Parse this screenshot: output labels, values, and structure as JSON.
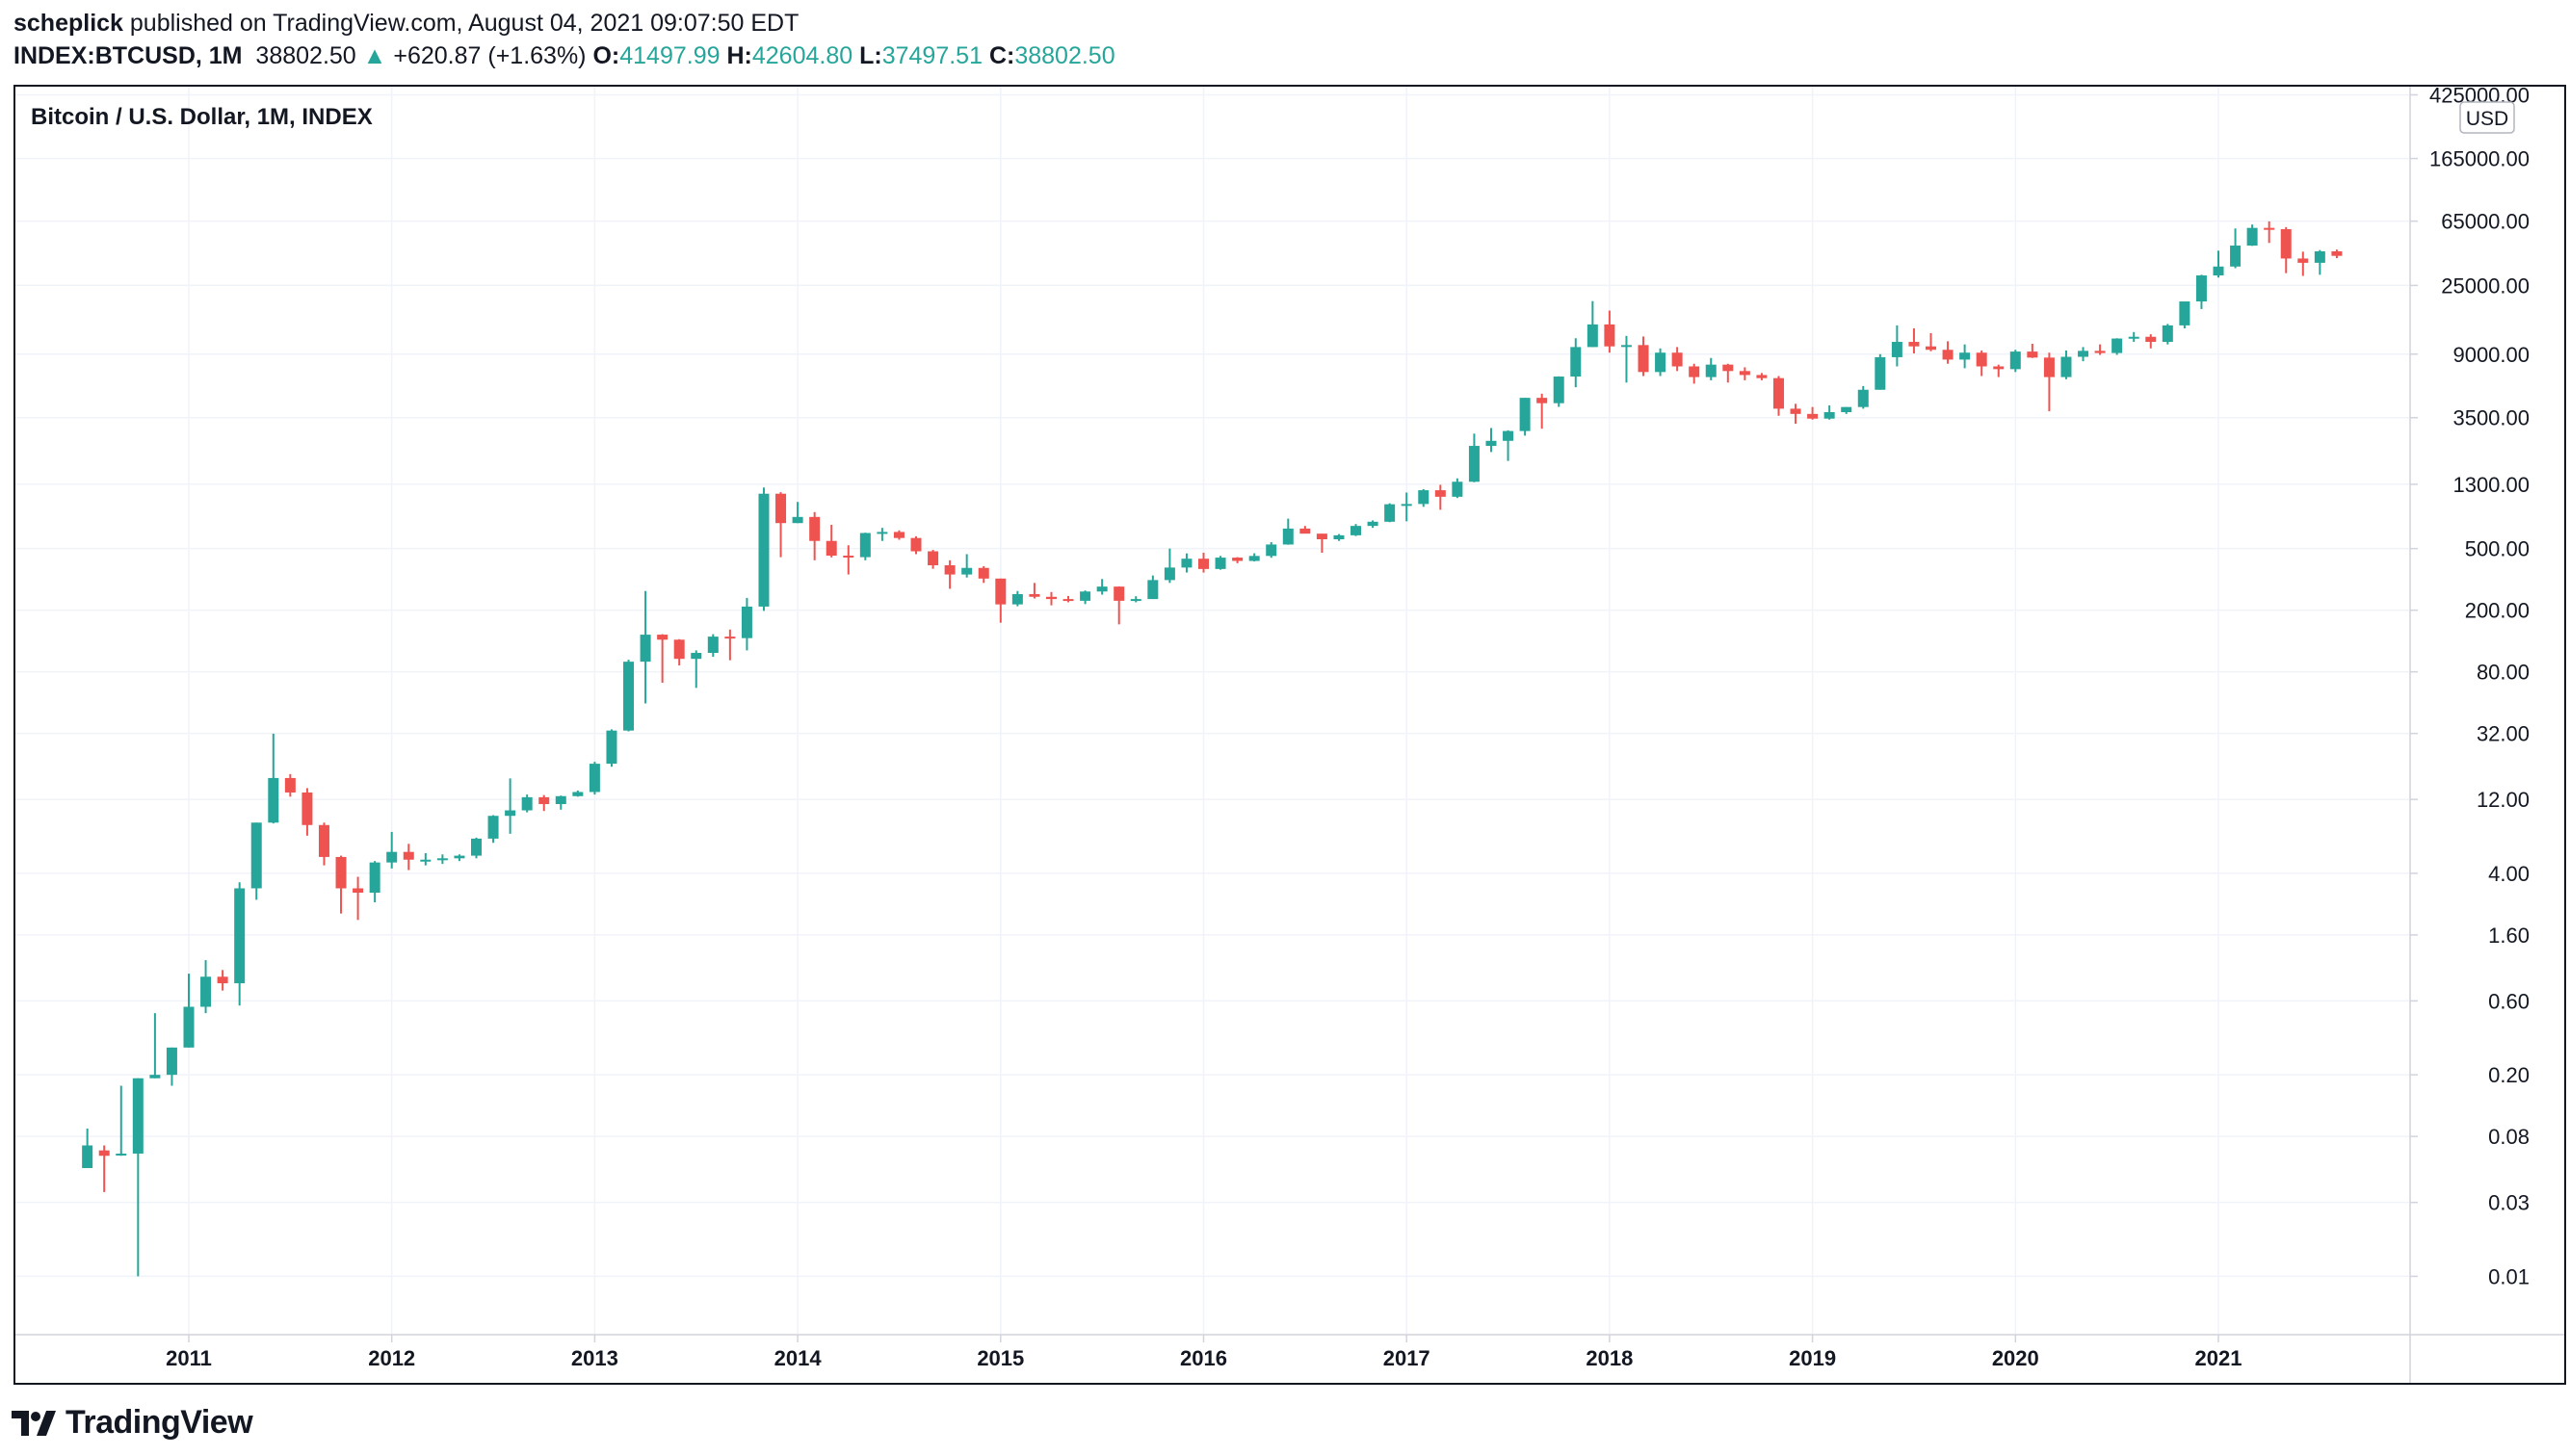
{
  "header": {
    "author": "scheplick",
    "published_text": "published on TradingView.com, August 04, 2021 09:07:50 EDT"
  },
  "ohlc": {
    "symbol": "INDEX:BTCUSD, 1M",
    "last": "38802.50",
    "arrow": "▲",
    "change": "+620.87 (+1.63%)",
    "o_label": "O:",
    "o": "41497.99",
    "h_label": "H:",
    "h": "42604.80",
    "l_label": "L:",
    "l": "37497.51",
    "c_label": "C:",
    "c": "38802.50"
  },
  "colors": {
    "up": "#26a69a",
    "down": "#ef5350",
    "grid": "#f0f3fa",
    "axis_text": "#131722"
  },
  "chart_data": {
    "type": "candlestick",
    "title": "Bitcoin / U.S. Dollar, 1M, INDEX",
    "currency_badge": "USD",
    "y_scale": "log",
    "ylim": [
      0.0042,
      480000
    ],
    "y_ticks": [
      "425000.00",
      "165000.00",
      "65000.00",
      "25000.00",
      "9000.00",
      "3500.00",
      "1300.00",
      "500.00",
      "200.00",
      "80.00",
      "32.00",
      "12.00",
      "4.00",
      "1.60",
      "0.60",
      "0.20",
      "0.08",
      "0.03",
      "0.01"
    ],
    "x_ticks": [
      "2011",
      "2012",
      "2013",
      "2014",
      "2015",
      "2016",
      "2017",
      "2018",
      "2019",
      "2020",
      "2021"
    ],
    "grid": true,
    "candles": [
      {
        "date": "2010-07",
        "o": 0.05,
        "h": 0.09,
        "l": 0.05,
        "c": 0.07
      },
      {
        "date": "2010-08",
        "o": 0.065,
        "h": 0.07,
        "l": 0.035,
        "c": 0.06
      },
      {
        "date": "2010-09",
        "o": 0.062,
        "h": 0.17,
        "l": 0.06,
        "c": 0.062
      },
      {
        "date": "2010-10",
        "o": 0.062,
        "h": 0.19,
        "l": 0.01,
        "c": 0.19
      },
      {
        "date": "2010-11",
        "o": 0.19,
        "h": 0.5,
        "l": 0.19,
        "c": 0.2
      },
      {
        "date": "2010-12",
        "o": 0.2,
        "h": 0.3,
        "l": 0.17,
        "c": 0.3
      },
      {
        "date": "2011-01",
        "o": 0.3,
        "h": 0.9,
        "l": 0.3,
        "c": 0.55
      },
      {
        "date": "2011-02",
        "o": 0.55,
        "h": 1.1,
        "l": 0.5,
        "c": 0.86
      },
      {
        "date": "2011-03",
        "o": 0.86,
        "h": 0.95,
        "l": 0.7,
        "c": 0.78
      },
      {
        "date": "2011-04",
        "o": 0.78,
        "h": 3.5,
        "l": 0.56,
        "c": 3.2
      },
      {
        "date": "2011-05",
        "o": 3.2,
        "h": 8.5,
        "l": 2.7,
        "c": 8.5
      },
      {
        "date": "2011-06",
        "o": 8.5,
        "h": 31.9,
        "l": 8.4,
        "c": 16.5
      },
      {
        "date": "2011-07",
        "o": 16.5,
        "h": 17.5,
        "l": 12.5,
        "c": 13.3
      },
      {
        "date": "2011-08",
        "o": 13.3,
        "h": 14.2,
        "l": 7.0,
        "c": 8.2
      },
      {
        "date": "2011-09",
        "o": 8.2,
        "h": 8.5,
        "l": 4.5,
        "c": 5.1
      },
      {
        "date": "2011-10",
        "o": 5.1,
        "h": 5.2,
        "l": 2.2,
        "c": 3.2
      },
      {
        "date": "2011-11",
        "o": 3.2,
        "h": 3.8,
        "l": 2.0,
        "c": 3.0
      },
      {
        "date": "2011-12",
        "o": 3.0,
        "h": 4.8,
        "l": 2.6,
        "c": 4.7
      },
      {
        "date": "2012-01",
        "o": 4.7,
        "h": 7.4,
        "l": 4.3,
        "c": 5.5
      },
      {
        "date": "2012-02",
        "o": 5.5,
        "h": 6.2,
        "l": 4.2,
        "c": 4.9
      },
      {
        "date": "2012-03",
        "o": 4.9,
        "h": 5.4,
        "l": 4.5,
        "c": 4.9
      },
      {
        "date": "2012-04",
        "o": 4.9,
        "h": 5.3,
        "l": 4.6,
        "c": 5.0
      },
      {
        "date": "2012-05",
        "o": 5.0,
        "h": 5.3,
        "l": 4.8,
        "c": 5.2
      },
      {
        "date": "2012-06",
        "o": 5.2,
        "h": 6.8,
        "l": 5.0,
        "c": 6.7
      },
      {
        "date": "2012-07",
        "o": 6.7,
        "h": 9.5,
        "l": 6.3,
        "c": 9.4
      },
      {
        "date": "2012-08",
        "o": 9.4,
        "h": 16.4,
        "l": 7.2,
        "c": 10.2
      },
      {
        "date": "2012-09",
        "o": 10.2,
        "h": 12.9,
        "l": 9.9,
        "c": 12.4
      },
      {
        "date": "2012-10",
        "o": 12.4,
        "h": 12.8,
        "l": 10.1,
        "c": 11.2
      },
      {
        "date": "2012-11",
        "o": 11.2,
        "h": 12.7,
        "l": 10.3,
        "c": 12.6
      },
      {
        "date": "2012-12",
        "o": 12.6,
        "h": 13.7,
        "l": 12.5,
        "c": 13.4
      },
      {
        "date": "2013-01",
        "o": 13.4,
        "h": 21.0,
        "l": 12.9,
        "c": 20.4
      },
      {
        "date": "2013-02",
        "o": 20.4,
        "h": 34.0,
        "l": 19.5,
        "c": 33.4
      },
      {
        "date": "2013-03",
        "o": 33.4,
        "h": 95.7,
        "l": 33.0,
        "c": 93.0
      },
      {
        "date": "2013-04",
        "o": 93.0,
        "h": 266.0,
        "l": 50.0,
        "c": 139.0
      },
      {
        "date": "2013-05",
        "o": 139.0,
        "h": 140.0,
        "l": 68.0,
        "c": 129.0
      },
      {
        "date": "2013-06",
        "o": 129.0,
        "h": 130.0,
        "l": 88.0,
        "c": 97.0
      },
      {
        "date": "2013-07",
        "o": 97.0,
        "h": 110.0,
        "l": 63.0,
        "c": 106.0
      },
      {
        "date": "2013-08",
        "o": 106.0,
        "h": 140.0,
        "l": 100.0,
        "c": 135.0
      },
      {
        "date": "2013-09",
        "o": 135.0,
        "h": 150.0,
        "l": 95.0,
        "c": 132.0
      },
      {
        "date": "2013-10",
        "o": 132.0,
        "h": 240.0,
        "l": 110.0,
        "c": 211.0
      },
      {
        "date": "2013-11",
        "o": 211.0,
        "h": 1240.0,
        "l": 198.0,
        "c": 1130.0
      },
      {
        "date": "2013-12",
        "o": 1130.0,
        "h": 1156.0,
        "l": 440.0,
        "c": 730.0
      },
      {
        "date": "2014-01",
        "o": 730.0,
        "h": 1000.0,
        "l": 730.0,
        "c": 800.0
      },
      {
        "date": "2014-02",
        "o": 800.0,
        "h": 860.0,
        "l": 420.0,
        "c": 560.0
      },
      {
        "date": "2014-03",
        "o": 560.0,
        "h": 712.0,
        "l": 438.0,
        "c": 450.0
      },
      {
        "date": "2014-04",
        "o": 450.0,
        "h": 525.0,
        "l": 340.0,
        "c": 440.0
      },
      {
        "date": "2014-05",
        "o": 440.0,
        "h": 633.0,
        "l": 420.0,
        "c": 630.0
      },
      {
        "date": "2014-06",
        "o": 630.0,
        "h": 680.0,
        "l": 560.0,
        "c": 640.0
      },
      {
        "date": "2014-07",
        "o": 640.0,
        "h": 655.0,
        "l": 570.0,
        "c": 585.0
      },
      {
        "date": "2014-08",
        "o": 585.0,
        "h": 600.0,
        "l": 460.0,
        "c": 480.0
      },
      {
        "date": "2014-09",
        "o": 480.0,
        "h": 490.0,
        "l": 370.0,
        "c": 390.0
      },
      {
        "date": "2014-10",
        "o": 390.0,
        "h": 420.0,
        "l": 275.0,
        "c": 340.0
      },
      {
        "date": "2014-11",
        "o": 340.0,
        "h": 460.0,
        "l": 325.0,
        "c": 375.0
      },
      {
        "date": "2014-12",
        "o": 375.0,
        "h": 385.0,
        "l": 300.0,
        "c": 320.0
      },
      {
        "date": "2015-01",
        "o": 320.0,
        "h": 320.0,
        "l": 166.0,
        "c": 218.0
      },
      {
        "date": "2015-02",
        "o": 218.0,
        "h": 266.0,
        "l": 212.0,
        "c": 254.0
      },
      {
        "date": "2015-03",
        "o": 254.0,
        "h": 300.0,
        "l": 238.0,
        "c": 244.0
      },
      {
        "date": "2015-04",
        "o": 244.0,
        "h": 262.0,
        "l": 215.0,
        "c": 236.0
      },
      {
        "date": "2015-05",
        "o": 236.0,
        "h": 247.0,
        "l": 225.0,
        "c": 230.0
      },
      {
        "date": "2015-06",
        "o": 230.0,
        "h": 268.0,
        "l": 219.0,
        "c": 264.0
      },
      {
        "date": "2015-07",
        "o": 264.0,
        "h": 318.0,
        "l": 252.0,
        "c": 284.0
      },
      {
        "date": "2015-08",
        "o": 284.0,
        "h": 285.0,
        "l": 162.0,
        "c": 230.0
      },
      {
        "date": "2015-09",
        "o": 230.0,
        "h": 246.0,
        "l": 225.0,
        "c": 236.0
      },
      {
        "date": "2015-10",
        "o": 236.0,
        "h": 335.0,
        "l": 236.0,
        "c": 313.0
      },
      {
        "date": "2015-11",
        "o": 313.0,
        "h": 500.0,
        "l": 300.0,
        "c": 377.0
      },
      {
        "date": "2015-12",
        "o": 377.0,
        "h": 465.0,
        "l": 350.0,
        "c": 430.0
      },
      {
        "date": "2016-01",
        "o": 430.0,
        "h": 470.0,
        "l": 350.0,
        "c": 369.0
      },
      {
        "date": "2016-02",
        "o": 369.0,
        "h": 448.0,
        "l": 365.0,
        "c": 437.0
      },
      {
        "date": "2016-03",
        "o": 437.0,
        "h": 440.0,
        "l": 402.0,
        "c": 416.0
      },
      {
        "date": "2016-04",
        "o": 416.0,
        "h": 466.0,
        "l": 413.0,
        "c": 448.0
      },
      {
        "date": "2016-05",
        "o": 448.0,
        "h": 550.0,
        "l": 436.0,
        "c": 531.0
      },
      {
        "date": "2016-06",
        "o": 531.0,
        "h": 780.0,
        "l": 529.0,
        "c": 673.0
      },
      {
        "date": "2016-07",
        "o": 673.0,
        "h": 700.0,
        "l": 641.0,
        "c": 624.0
      },
      {
        "date": "2016-08",
        "o": 624.0,
        "h": 624.0,
        "l": 470.0,
        "c": 574.0
      },
      {
        "date": "2016-09",
        "o": 574.0,
        "h": 620.0,
        "l": 560.0,
        "c": 609.0
      },
      {
        "date": "2016-10",
        "o": 609.0,
        "h": 720.0,
        "l": 602.0,
        "c": 700.0
      },
      {
        "date": "2016-11",
        "o": 700.0,
        "h": 760.0,
        "l": 680.0,
        "c": 745.0
      },
      {
        "date": "2016-12",
        "o": 745.0,
        "h": 980.0,
        "l": 740.0,
        "c": 966.0
      },
      {
        "date": "2017-01",
        "o": 966.0,
        "h": 1150.0,
        "l": 750.0,
        "c": 970.0
      },
      {
        "date": "2017-02",
        "o": 970.0,
        "h": 1210.0,
        "l": 930.0,
        "c": 1190.0
      },
      {
        "date": "2017-03",
        "o": 1190.0,
        "h": 1290.0,
        "l": 890.0,
        "c": 1080.0
      },
      {
        "date": "2017-04",
        "o": 1080.0,
        "h": 1420.0,
        "l": 1060.0,
        "c": 1350.0
      },
      {
        "date": "2017-05",
        "o": 1350.0,
        "h": 2760.0,
        "l": 1340.0,
        "c": 2300.0
      },
      {
        "date": "2017-06",
        "o": 2300.0,
        "h": 3000.0,
        "l": 2100.0,
        "c": 2480.0
      },
      {
        "date": "2017-07",
        "o": 2480.0,
        "h": 2900.0,
        "l": 1840.0,
        "c": 2870.0
      },
      {
        "date": "2017-08",
        "o": 2870.0,
        "h": 4700.0,
        "l": 2680.0,
        "c": 4700.0
      },
      {
        "date": "2017-09",
        "o": 4700.0,
        "h": 5000.0,
        "l": 2970.0,
        "c": 4340.0
      },
      {
        "date": "2017-10",
        "o": 4340.0,
        "h": 6470.0,
        "l": 4110.0,
        "c": 6450.0
      },
      {
        "date": "2017-11",
        "o": 6450.0,
        "h": 11400.0,
        "l": 5500.0,
        "c": 10000.0
      },
      {
        "date": "2017-12",
        "o": 10000.0,
        "h": 19800.0,
        "l": 10000.0,
        "c": 14000.0
      },
      {
        "date": "2018-01",
        "o": 14000.0,
        "h": 17200.0,
        "l": 9200.0,
        "c": 10100.0
      },
      {
        "date": "2018-02",
        "o": 10100.0,
        "h": 11800.0,
        "l": 5900.0,
        "c": 10300.0
      },
      {
        "date": "2018-03",
        "o": 10300.0,
        "h": 11700.0,
        "l": 6500.0,
        "c": 6900.0
      },
      {
        "date": "2018-04",
        "o": 6900.0,
        "h": 9800.0,
        "l": 6500.0,
        "c": 9200.0
      },
      {
        "date": "2018-05",
        "o": 9200.0,
        "h": 10000.0,
        "l": 7000.0,
        "c": 7500.0
      },
      {
        "date": "2018-06",
        "o": 7500.0,
        "h": 7800.0,
        "l": 5800.0,
        "c": 6400.0
      },
      {
        "date": "2018-07",
        "o": 6400.0,
        "h": 8500.0,
        "l": 6100.0,
        "c": 7700.0
      },
      {
        "date": "2018-08",
        "o": 7700.0,
        "h": 7800.0,
        "l": 5900.0,
        "c": 7000.0
      },
      {
        "date": "2018-09",
        "o": 7000.0,
        "h": 7400.0,
        "l": 6100.0,
        "c": 6600.0
      },
      {
        "date": "2018-10",
        "o": 6600.0,
        "h": 6800.0,
        "l": 6100.0,
        "c": 6300.0
      },
      {
        "date": "2018-11",
        "o": 6300.0,
        "h": 6500.0,
        "l": 3600.0,
        "c": 4000.0
      },
      {
        "date": "2018-12",
        "o": 4000.0,
        "h": 4300.0,
        "l": 3200.0,
        "c": 3700.0
      },
      {
        "date": "2019-01",
        "o": 3700.0,
        "h": 4100.0,
        "l": 3400.0,
        "c": 3450.0
      },
      {
        "date": "2019-02",
        "o": 3450.0,
        "h": 4200.0,
        "l": 3400.0,
        "c": 3800.0
      },
      {
        "date": "2019-03",
        "o": 3800.0,
        "h": 4100.0,
        "l": 3700.0,
        "c": 4100.0
      },
      {
        "date": "2019-04",
        "o": 4100.0,
        "h": 5600.0,
        "l": 4000.0,
        "c": 5300.0
      },
      {
        "date": "2019-05",
        "o": 5300.0,
        "h": 9000.0,
        "l": 5300.0,
        "c": 8600.0
      },
      {
        "date": "2019-06",
        "o": 8600.0,
        "h": 13800.0,
        "l": 7500.0,
        "c": 10800.0
      },
      {
        "date": "2019-07",
        "o": 10800.0,
        "h": 13200.0,
        "l": 9100.0,
        "c": 10100.0
      },
      {
        "date": "2019-08",
        "o": 10100.0,
        "h": 12300.0,
        "l": 9400.0,
        "c": 9600.0
      },
      {
        "date": "2019-09",
        "o": 9600.0,
        "h": 10900.0,
        "l": 7800.0,
        "c": 8300.0
      },
      {
        "date": "2019-10",
        "o": 8300.0,
        "h": 10400.0,
        "l": 7300.0,
        "c": 9200.0
      },
      {
        "date": "2019-11",
        "o": 9200.0,
        "h": 9500.0,
        "l": 6500.0,
        "c": 7500.0
      },
      {
        "date": "2019-12",
        "o": 7500.0,
        "h": 7700.0,
        "l": 6400.0,
        "c": 7200.0
      },
      {
        "date": "2020-01",
        "o": 7200.0,
        "h": 9600.0,
        "l": 6900.0,
        "c": 9350.0
      },
      {
        "date": "2020-02",
        "o": 9350.0,
        "h": 10500.0,
        "l": 8500.0,
        "c": 8550.0
      },
      {
        "date": "2020-03",
        "o": 8550.0,
        "h": 9200.0,
        "l": 3850.0,
        "c": 6400.0
      },
      {
        "date": "2020-04",
        "o": 6400.0,
        "h": 9500.0,
        "l": 6200.0,
        "c": 8650.0
      },
      {
        "date": "2020-05",
        "o": 8650.0,
        "h": 10000.0,
        "l": 8100.0,
        "c": 9450.0
      },
      {
        "date": "2020-06",
        "o": 9450.0,
        "h": 10400.0,
        "l": 8900.0,
        "c": 9150.0
      },
      {
        "date": "2020-07",
        "o": 9150.0,
        "h": 11400.0,
        "l": 8900.0,
        "c": 11350.0
      },
      {
        "date": "2020-08",
        "o": 11350.0,
        "h": 12500.0,
        "l": 10800.0,
        "c": 11650.0
      },
      {
        "date": "2020-09",
        "o": 11650.0,
        "h": 12100.0,
        "l": 9800.0,
        "c": 10800.0
      },
      {
        "date": "2020-10",
        "o": 10800.0,
        "h": 14100.0,
        "l": 10400.0,
        "c": 13800.0
      },
      {
        "date": "2020-11",
        "o": 13800.0,
        "h": 19500.0,
        "l": 13200.0,
        "c": 19700.0
      },
      {
        "date": "2020-12",
        "o": 19700.0,
        "h": 29300.0,
        "l": 17600.0,
        "c": 29000.0
      },
      {
        "date": "2021-01",
        "o": 29000.0,
        "h": 41900.0,
        "l": 28100.0,
        "c": 33100.0
      },
      {
        "date": "2021-02",
        "o": 33100.0,
        "h": 58300.0,
        "l": 32300.0,
        "c": 45200.0
      },
      {
        "date": "2021-03",
        "o": 45200.0,
        "h": 61800.0,
        "l": 45000.0,
        "c": 58800.0
      },
      {
        "date": "2021-04",
        "o": 58800.0,
        "h": 64800.0,
        "l": 47000.0,
        "c": 57700.0
      },
      {
        "date": "2021-05",
        "o": 57700.0,
        "h": 59500.0,
        "l": 30000.0,
        "c": 37300.0
      },
      {
        "date": "2021-06",
        "o": 37300.0,
        "h": 41300.0,
        "l": 28800.0,
        "c": 35000.0
      },
      {
        "date": "2021-07",
        "o": 35000.0,
        "h": 42300.0,
        "l": 29300.0,
        "c": 41500.0
      },
      {
        "date": "2021-08",
        "o": 41497.99,
        "h": 42604.8,
        "l": 37497.51,
        "c": 38802.5
      }
    ]
  },
  "footer": {
    "brand": "TradingView"
  }
}
